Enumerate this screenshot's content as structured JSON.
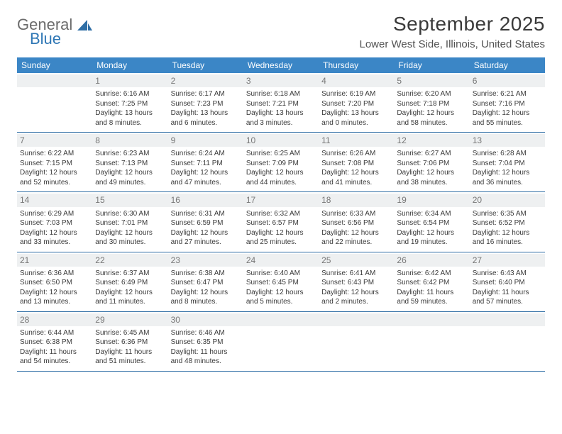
{
  "brand": {
    "part1": "General",
    "part2": "Blue"
  },
  "title": "September 2025",
  "location": "Lower West Side, Illinois, United States",
  "colors": {
    "header_bg": "#3b86c6",
    "header_text": "#ffffff",
    "daynum_bg": "#eef0f1",
    "daynum_text": "#777777",
    "body_text": "#3a3a3a",
    "rule": "#2f6ea5",
    "brand_gray": "#6b6b6b",
    "brand_blue": "#2f77b5"
  },
  "typography": {
    "title_fontsize": 28,
    "location_fontsize": 15,
    "dow_fontsize": 12,
    "daynum_fontsize": 12,
    "body_fontsize": 10
  },
  "days_of_week": [
    "Sunday",
    "Monday",
    "Tuesday",
    "Wednesday",
    "Thursday",
    "Friday",
    "Saturday"
  ],
  "weeks": [
    [
      null,
      {
        "n": "1",
        "sunrise": "Sunrise: 6:16 AM",
        "sunset": "Sunset: 7:25 PM",
        "daylight": "Daylight: 13 hours and 8 minutes."
      },
      {
        "n": "2",
        "sunrise": "Sunrise: 6:17 AM",
        "sunset": "Sunset: 7:23 PM",
        "daylight": "Daylight: 13 hours and 6 minutes."
      },
      {
        "n": "3",
        "sunrise": "Sunrise: 6:18 AM",
        "sunset": "Sunset: 7:21 PM",
        "daylight": "Daylight: 13 hours and 3 minutes."
      },
      {
        "n": "4",
        "sunrise": "Sunrise: 6:19 AM",
        "sunset": "Sunset: 7:20 PM",
        "daylight": "Daylight: 13 hours and 0 minutes."
      },
      {
        "n": "5",
        "sunrise": "Sunrise: 6:20 AM",
        "sunset": "Sunset: 7:18 PM",
        "daylight": "Daylight: 12 hours and 58 minutes."
      },
      {
        "n": "6",
        "sunrise": "Sunrise: 6:21 AM",
        "sunset": "Sunset: 7:16 PM",
        "daylight": "Daylight: 12 hours and 55 minutes."
      }
    ],
    [
      {
        "n": "7",
        "sunrise": "Sunrise: 6:22 AM",
        "sunset": "Sunset: 7:15 PM",
        "daylight": "Daylight: 12 hours and 52 minutes."
      },
      {
        "n": "8",
        "sunrise": "Sunrise: 6:23 AM",
        "sunset": "Sunset: 7:13 PM",
        "daylight": "Daylight: 12 hours and 49 minutes."
      },
      {
        "n": "9",
        "sunrise": "Sunrise: 6:24 AM",
        "sunset": "Sunset: 7:11 PM",
        "daylight": "Daylight: 12 hours and 47 minutes."
      },
      {
        "n": "10",
        "sunrise": "Sunrise: 6:25 AM",
        "sunset": "Sunset: 7:09 PM",
        "daylight": "Daylight: 12 hours and 44 minutes."
      },
      {
        "n": "11",
        "sunrise": "Sunrise: 6:26 AM",
        "sunset": "Sunset: 7:08 PM",
        "daylight": "Daylight: 12 hours and 41 minutes."
      },
      {
        "n": "12",
        "sunrise": "Sunrise: 6:27 AM",
        "sunset": "Sunset: 7:06 PM",
        "daylight": "Daylight: 12 hours and 38 minutes."
      },
      {
        "n": "13",
        "sunrise": "Sunrise: 6:28 AM",
        "sunset": "Sunset: 7:04 PM",
        "daylight": "Daylight: 12 hours and 36 minutes."
      }
    ],
    [
      {
        "n": "14",
        "sunrise": "Sunrise: 6:29 AM",
        "sunset": "Sunset: 7:03 PM",
        "daylight": "Daylight: 12 hours and 33 minutes."
      },
      {
        "n": "15",
        "sunrise": "Sunrise: 6:30 AM",
        "sunset": "Sunset: 7:01 PM",
        "daylight": "Daylight: 12 hours and 30 minutes."
      },
      {
        "n": "16",
        "sunrise": "Sunrise: 6:31 AM",
        "sunset": "Sunset: 6:59 PM",
        "daylight": "Daylight: 12 hours and 27 minutes."
      },
      {
        "n": "17",
        "sunrise": "Sunrise: 6:32 AM",
        "sunset": "Sunset: 6:57 PM",
        "daylight": "Daylight: 12 hours and 25 minutes."
      },
      {
        "n": "18",
        "sunrise": "Sunrise: 6:33 AM",
        "sunset": "Sunset: 6:56 PM",
        "daylight": "Daylight: 12 hours and 22 minutes."
      },
      {
        "n": "19",
        "sunrise": "Sunrise: 6:34 AM",
        "sunset": "Sunset: 6:54 PM",
        "daylight": "Daylight: 12 hours and 19 minutes."
      },
      {
        "n": "20",
        "sunrise": "Sunrise: 6:35 AM",
        "sunset": "Sunset: 6:52 PM",
        "daylight": "Daylight: 12 hours and 16 minutes."
      }
    ],
    [
      {
        "n": "21",
        "sunrise": "Sunrise: 6:36 AM",
        "sunset": "Sunset: 6:50 PM",
        "daylight": "Daylight: 12 hours and 13 minutes."
      },
      {
        "n": "22",
        "sunrise": "Sunrise: 6:37 AM",
        "sunset": "Sunset: 6:49 PM",
        "daylight": "Daylight: 12 hours and 11 minutes."
      },
      {
        "n": "23",
        "sunrise": "Sunrise: 6:38 AM",
        "sunset": "Sunset: 6:47 PM",
        "daylight": "Daylight: 12 hours and 8 minutes."
      },
      {
        "n": "24",
        "sunrise": "Sunrise: 6:40 AM",
        "sunset": "Sunset: 6:45 PM",
        "daylight": "Daylight: 12 hours and 5 minutes."
      },
      {
        "n": "25",
        "sunrise": "Sunrise: 6:41 AM",
        "sunset": "Sunset: 6:43 PM",
        "daylight": "Daylight: 12 hours and 2 minutes."
      },
      {
        "n": "26",
        "sunrise": "Sunrise: 6:42 AM",
        "sunset": "Sunset: 6:42 PM",
        "daylight": "Daylight: 11 hours and 59 minutes."
      },
      {
        "n": "27",
        "sunrise": "Sunrise: 6:43 AM",
        "sunset": "Sunset: 6:40 PM",
        "daylight": "Daylight: 11 hours and 57 minutes."
      }
    ],
    [
      {
        "n": "28",
        "sunrise": "Sunrise: 6:44 AM",
        "sunset": "Sunset: 6:38 PM",
        "daylight": "Daylight: 11 hours and 54 minutes."
      },
      {
        "n": "29",
        "sunrise": "Sunrise: 6:45 AM",
        "sunset": "Sunset: 6:36 PM",
        "daylight": "Daylight: 11 hours and 51 minutes."
      },
      {
        "n": "30",
        "sunrise": "Sunrise: 6:46 AM",
        "sunset": "Sunset: 6:35 PM",
        "daylight": "Daylight: 11 hours and 48 minutes."
      },
      null,
      null,
      null,
      null
    ]
  ]
}
